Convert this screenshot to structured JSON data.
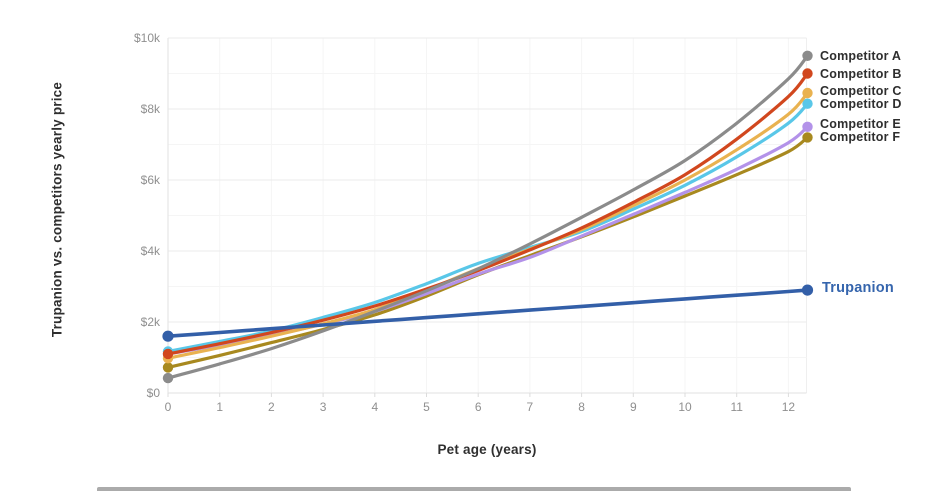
{
  "chart_data": {
    "type": "line",
    "y_axis_label": "Trupanion vs. competitors yearly price",
    "x_axis_label": "Pet age (years)",
    "grid": "horizontal-major-minor-plus-faint-vertical",
    "legend_position": "right-of-line-ends",
    "xlim": [
      0,
      12.37
    ],
    "ylim": [
      0,
      10000
    ],
    "x_ticks": [
      {
        "value": 0,
        "label": "0"
      },
      {
        "value": 1,
        "label": "1"
      },
      {
        "value": 2,
        "label": "2"
      },
      {
        "value": 3,
        "label": "3"
      },
      {
        "value": 4,
        "label": "4"
      },
      {
        "value": 5,
        "label": "5"
      },
      {
        "value": 6,
        "label": "6"
      },
      {
        "value": 7,
        "label": "7"
      },
      {
        "value": 8,
        "label": "8"
      },
      {
        "value": 9,
        "label": "9"
      },
      {
        "value": 10,
        "label": "10"
      },
      {
        "value": 11,
        "label": "11"
      },
      {
        "value": 12,
        "label": "12"
      }
    ],
    "y_ticks": [
      {
        "value": 0,
        "label": "$0"
      },
      {
        "value": 2000,
        "label": "$2k"
      },
      {
        "value": 4000,
        "label": "$4k"
      },
      {
        "value": 6000,
        "label": "$6k"
      },
      {
        "value": 8000,
        "label": "$8k"
      },
      {
        "value": 10000,
        "label": "$10k"
      }
    ],
    "minor_y_gridlines": [
      1000,
      3000,
      5000,
      7000,
      9000
    ],
    "x": [
      0,
      1,
      2,
      3,
      4,
      5,
      6,
      7,
      8,
      9,
      10,
      11,
      12,
      12.37
    ],
    "series": [
      {
        "name": "Competitor A",
        "color": "#8b8b8b",
        "label_color": "#2e2e2e",
        "values": [
          420,
          820,
          1250,
          1750,
          2300,
          2880,
          3500,
          4200,
          4950,
          5720,
          6550,
          7600,
          8850,
          9500
        ]
      },
      {
        "name": "Competitor B",
        "color": "#d1471e",
        "label_color": "#2e2e2e",
        "values": [
          1100,
          1390,
          1700,
          2050,
          2450,
          2930,
          3450,
          4030,
          4650,
          5370,
          6150,
          7150,
          8350,
          9000
        ]
      },
      {
        "name": "Competitor C",
        "color": "#e9b250",
        "label_color": "#2e2e2e",
        "values": [
          980,
          1280,
          1600,
          1950,
          2350,
          2900,
          3500,
          4050,
          4600,
          5280,
          6000,
          6850,
          7850,
          8450
        ]
      },
      {
        "name": "Competitor D",
        "color": "#59c7e8",
        "label_color": "#2e2e2e",
        "values": [
          1170,
          1450,
          1750,
          2130,
          2550,
          3080,
          3650,
          4100,
          4550,
          5180,
          5850,
          6650,
          7600,
          8150
        ]
      },
      {
        "name": "Competitor E",
        "color": "#b392e9",
        "label_color": "#2e2e2e",
        "values": [
          1100,
          1350,
          1620,
          1940,
          2300,
          2800,
          3350,
          3820,
          4420,
          5030,
          5650,
          6300,
          7050,
          7500
        ]
      },
      {
        "name": "Competitor F",
        "color": "#a8891f",
        "label_color": "#2e2e2e",
        "values": [
          720,
          1060,
          1420,
          1790,
          2200,
          2730,
          3330,
          3870,
          4400,
          4960,
          5550,
          6150,
          6800,
          7200
        ]
      },
      {
        "name": "Trupanion",
        "color": "#335fa8",
        "label_color": "#3565ad",
        "emphasized": true,
        "values": [
          1600,
          1705,
          1810,
          1915,
          2020,
          2125,
          2230,
          2335,
          2440,
          2545,
          2650,
          2755,
          2860,
          2900
        ]
      }
    ]
  }
}
